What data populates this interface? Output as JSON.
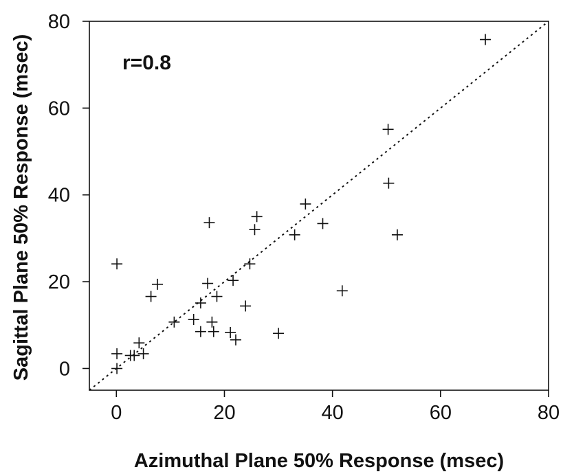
{
  "chart_data": {
    "type": "scatter",
    "title": "",
    "xlabel": "Azimuthal Plane 50% Response (msec)",
    "ylabel": "Sagittal Plane 50% Response (msec)",
    "xlim": [
      -5,
      80
    ],
    "ylim": [
      -5,
      80
    ],
    "x_ticks": [
      0,
      20,
      40,
      60,
      80
    ],
    "y_ticks": [
      0,
      20,
      40,
      60,
      80
    ],
    "x_tick_labels": [
      "0",
      "20",
      "40",
      "60",
      "80"
    ],
    "y_tick_labels": [
      "0",
      "20",
      "40",
      "60",
      "80"
    ],
    "grid": false,
    "marker": "plus",
    "annotation": "r=0.8",
    "reference_line": {
      "style": "dotted",
      "from": [
        -5,
        -5
      ],
      "to": [
        80,
        80
      ]
    },
    "series": [
      {
        "points": [
          [
            68.3,
            75.8
          ],
          [
            50.3,
            55.1
          ],
          [
            50.4,
            42.7
          ],
          [
            52.0,
            30.8
          ],
          [
            35.0,
            37.9
          ],
          [
            38.2,
            33.4
          ],
          [
            33.0,
            30.8
          ],
          [
            41.8,
            17.9
          ],
          [
            26.0,
            35.0
          ],
          [
            25.6,
            32.0
          ],
          [
            24.7,
            24.1
          ],
          [
            21.6,
            20.3
          ],
          [
            23.9,
            14.4
          ],
          [
            17.2,
            33.6
          ],
          [
            16.9,
            19.6
          ],
          [
            18.6,
            16.6
          ],
          [
            17.7,
            10.7
          ],
          [
            18.0,
            8.5
          ],
          [
            15.6,
            15.1
          ],
          [
            15.6,
            8.5
          ],
          [
            14.3,
            11.3
          ],
          [
            10.7,
            10.7
          ],
          [
            21.1,
            8.3
          ],
          [
            22.1,
            6.6
          ],
          [
            30.0,
            8.1
          ],
          [
            7.6,
            19.4
          ],
          [
            6.4,
            16.6
          ],
          [
            0.1,
            24.1
          ],
          [
            4.2,
            5.9
          ],
          [
            5.0,
            3.4
          ],
          [
            3.3,
            3.0
          ],
          [
            2.6,
            3.0
          ],
          [
            0.1,
            3.4
          ],
          [
            0.1,
            0.0
          ]
        ]
      }
    ]
  }
}
